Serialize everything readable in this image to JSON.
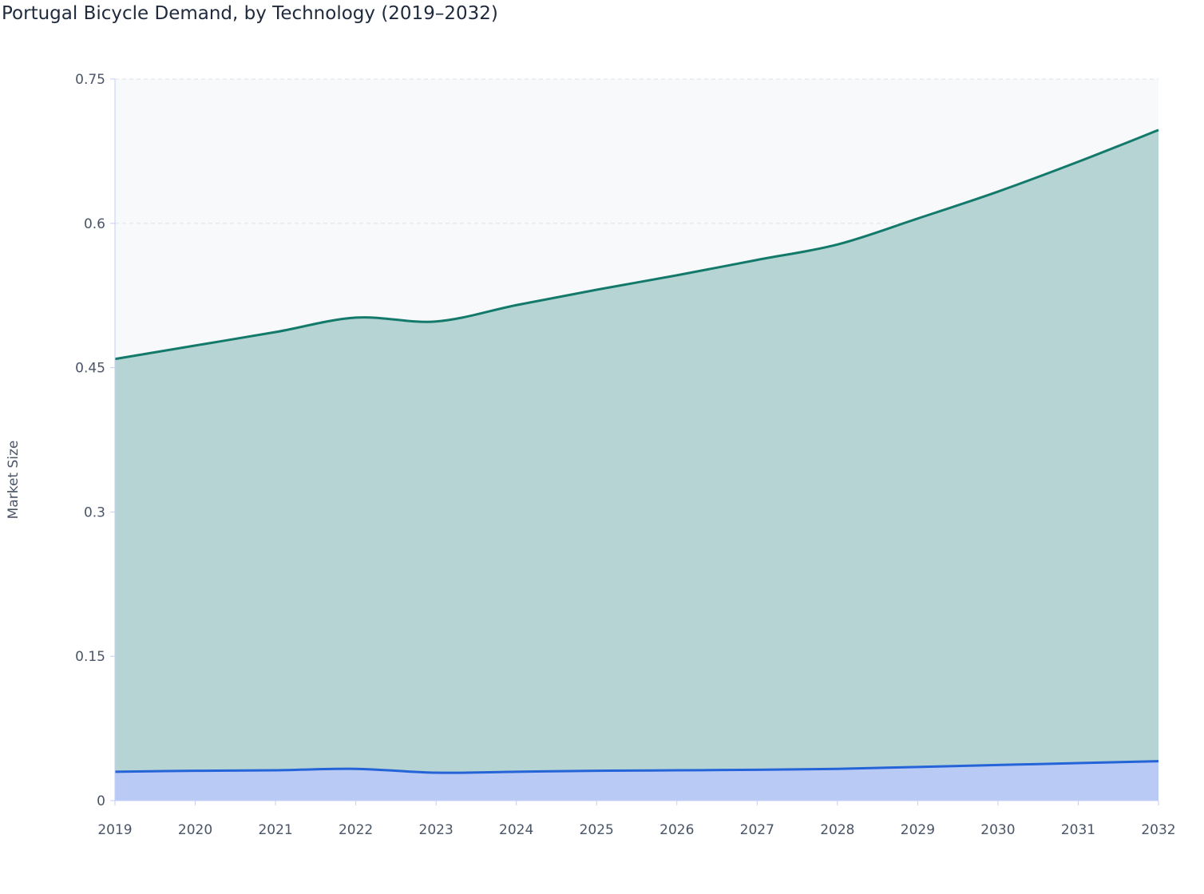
{
  "chart_data": {
    "type": "area",
    "stacked": true,
    "title": "Portugal Bicycle Demand, by Technology (2019–2032)",
    "xlabel": "",
    "ylabel": "Market Size",
    "x": [
      2019,
      2020,
      2021,
      2022,
      2023,
      2024,
      2025,
      2026,
      2027,
      2028,
      2029,
      2030,
      2031,
      2032
    ],
    "ylim": [
      0,
      0.75
    ],
    "yticks": [
      0,
      0.15,
      0.3,
      0.45,
      0.6,
      0.75
    ],
    "ytick_labels": [
      "0",
      "0.15",
      "0.3",
      "0.45",
      "0.6",
      "0.75"
    ],
    "grid": true,
    "legend": "none",
    "series": [
      {
        "values": [
          0.03,
          0.031,
          0.0315,
          0.033,
          0.029,
          0.03,
          0.031,
          0.0315,
          0.032,
          0.033,
          0.035,
          0.037,
          0.039,
          0.041
        ],
        "line_color": "#2563d8",
        "fill_color": "#b9cbf5"
      },
      {
        "values": [
          0.429,
          0.442,
          0.4555,
          0.469,
          0.469,
          0.485,
          0.5,
          0.5145,
          0.53,
          0.545,
          0.57,
          0.596,
          0.625,
          0.656
        ],
        "line_color": "#137a6b",
        "fill_color": "#b6d4d3"
      }
    ]
  }
}
